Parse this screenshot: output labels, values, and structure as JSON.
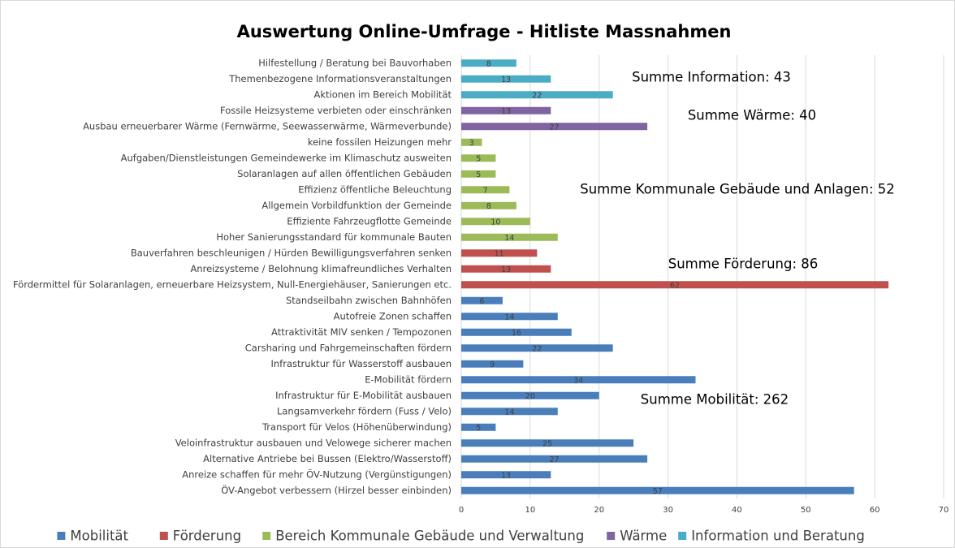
{
  "chart_data": {
    "type": "bar",
    "orientation": "horizontal",
    "title": "Auswertung Online-Umfrage - Hitliste Massnahmen",
    "categories": [
      "Hilfestellung / Beratung bei Bauvorhaben",
      "Themenbezogene Informationsveranstaltungen",
      "Aktionen im Bereich Mobilität",
      "Fossile Heizsysteme verbieten oder einschränken",
      "Ausbau erneuerbarer Wärme (Fernwärme, Seewasserwärme, Wärmeverbunde)",
      "keine fossilen Heizungen mehr",
      "Aufgaben/Dienstleistungen Gemeindewerke im Klimaschutz ausweiten",
      "Solaranlagen auf allen öffentlichen Gebäuden",
      "Effizienz öffentliche Beleuchtung",
      "Allgemein Vorbildfunktion der Gemeinde",
      "Effiziente Fahrzeugflotte Gemeinde",
      "Hoher Sanierungsstandard für kommunale Bauten",
      "Bauverfahren beschleunigen / Hürden Bewilligungsverfahren senken",
      "Anreizsysteme / Belohnung klimafreundliches Verhalten",
      "Fördermittel für Solaranlagen, erneuerbare Heizsystem, Null-Energiehäuser, Sanierungen etc.",
      "Standseilbahn zwischen Bahnhöfen",
      "Autofreie Zonen schaffen",
      "Attraktivität MIV senken / Tempozonen",
      "Carsharing und Fahrgemeinschaften fördern",
      "Infrastruktur für Wasserstoff ausbauen",
      "E-Mobilität fördern",
      "Infrastruktur für E-Mobilität ausbauen",
      "Langsamverkehr fördern (Fuss / Velo)",
      "Transport für Velos (Höhenüberwindung)",
      "Veloinfrastruktur ausbauen und Velowege sicherer machen",
      "Alternative Antriebe bei Bussen (Elektro/Wasserstoff)",
      "Anreize schaffen für mehr ÖV-Nutzung (Vergünstigungen)",
      "ÖV-Angebot verbessern (Hirzel besser einbinden)"
    ],
    "series": [
      {
        "name": "Mobilität",
        "color": "#4a7ebb",
        "values": [
          null,
          null,
          null,
          null,
          null,
          null,
          null,
          null,
          null,
          null,
          null,
          null,
          null,
          null,
          null,
          6,
          14,
          16,
          22,
          9,
          34,
          20,
          14,
          5,
          25,
          27,
          13,
          57
        ]
      },
      {
        "name": "Förderung",
        "color": "#c0504d",
        "values": [
          null,
          null,
          null,
          null,
          null,
          null,
          null,
          null,
          null,
          null,
          null,
          null,
          11,
          13,
          62,
          null,
          null,
          null,
          null,
          null,
          null,
          null,
          null,
          null,
          null,
          null,
          null,
          null
        ]
      },
      {
        "name": "Bereich Kommunale Gebäude und Verwaltung",
        "color": "#9bbb59",
        "values": [
          null,
          null,
          null,
          null,
          null,
          3,
          5,
          5,
          7,
          8,
          10,
          14,
          null,
          null,
          null,
          null,
          null,
          null,
          null,
          null,
          null,
          null,
          null,
          null,
          null,
          null,
          null,
          null
        ]
      },
      {
        "name": "Wärme",
        "color": "#8064a2",
        "values": [
          null,
          null,
          null,
          13,
          27,
          null,
          null,
          null,
          null,
          null,
          null,
          null,
          null,
          null,
          null,
          null,
          null,
          null,
          null,
          null,
          null,
          null,
          null,
          null,
          null,
          null,
          null,
          null
        ]
      },
      {
        "name": "Information und Beratung",
        "color": "#4bacc6",
        "values": [
          8,
          13,
          22,
          null,
          null,
          null,
          null,
          null,
          null,
          null,
          null,
          null,
          null,
          null,
          null,
          null,
          null,
          null,
          null,
          null,
          null,
          null,
          null,
          null,
          null,
          null,
          null,
          null
        ]
      }
    ],
    "annotations": [
      "Summe Information: 43",
      "Summe Wärme: 40",
      "Summe Kommunale Gebäude und Anlagen: 52",
      "Summe Förderung: 86",
      "Summe Mobilität: 262"
    ],
    "xlim": [
      0,
      70
    ],
    "xticks": [
      0,
      10,
      20,
      30,
      40,
      50,
      60,
      70
    ],
    "grid": true,
    "legend": "bottom"
  }
}
